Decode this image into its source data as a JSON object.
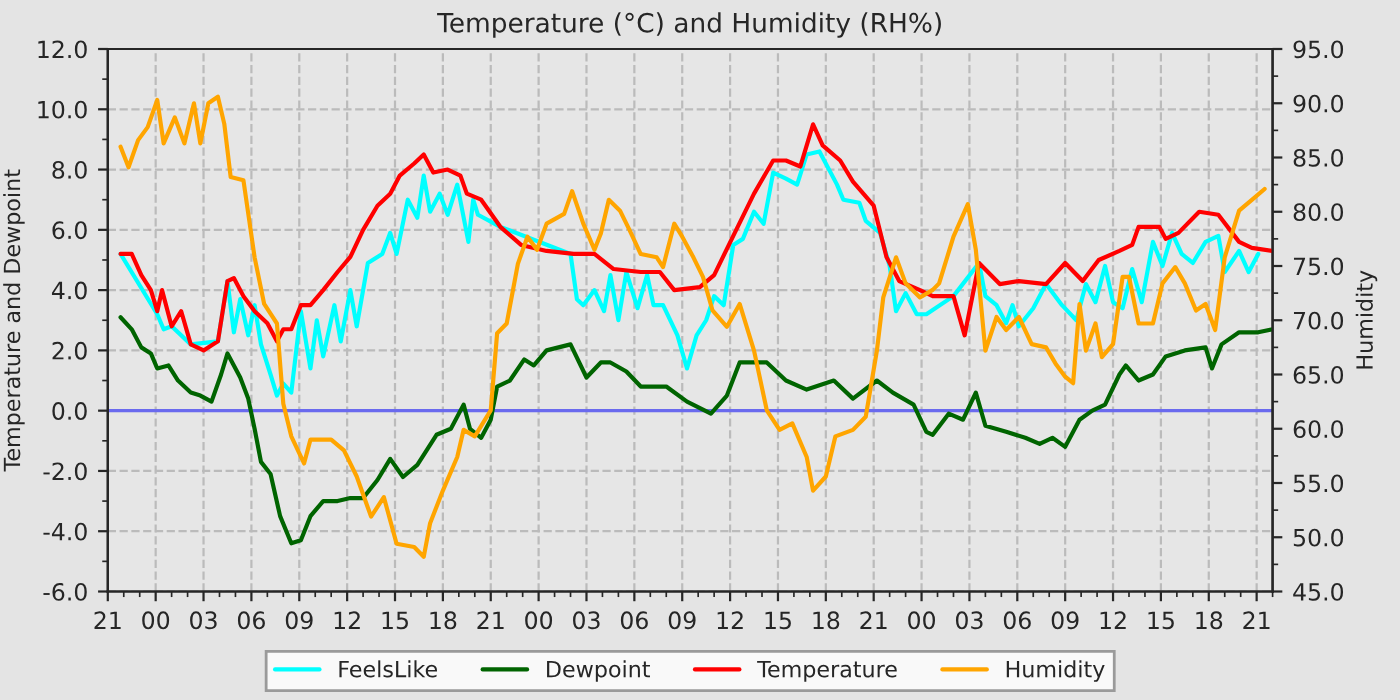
{
  "chart_data": {
    "type": "line",
    "title": "Temperature (°C) and Humidity (RH%)",
    "ylabel": "Temperature and Dewpoint",
    "y2label": "Humidity",
    "xlim": [
      "2000-01-01T21:00",
      "2000-01-04T22:00"
    ],
    "xticks": [
      {
        "value": "2000-01-01T21:00",
        "label": "21"
      },
      {
        "value": "2000-01-02T00:00",
        "label": "00"
      },
      {
        "value": "2000-01-02T03:00",
        "label": "03"
      },
      {
        "value": "2000-01-02T06:00",
        "label": "06"
      },
      {
        "value": "2000-01-02T09:00",
        "label": "09"
      },
      {
        "value": "2000-01-02T12:00",
        "label": "12"
      },
      {
        "value": "2000-01-02T15:00",
        "label": "15"
      },
      {
        "value": "2000-01-02T18:00",
        "label": "18"
      },
      {
        "value": "2000-01-02T21:00",
        "label": "21"
      },
      {
        "value": "2000-01-03T00:00",
        "label": "00"
      },
      {
        "value": "2000-01-03T03:00",
        "label": "03"
      },
      {
        "value": "2000-01-03T06:00",
        "label": "06"
      },
      {
        "value": "2000-01-03T09:00",
        "label": "09"
      },
      {
        "value": "2000-01-03T12:00",
        "label": "12"
      },
      {
        "value": "2000-01-03T15:00",
        "label": "15"
      },
      {
        "value": "2000-01-03T18:00",
        "label": "18"
      },
      {
        "value": "2000-01-03T21:00",
        "label": "21"
      },
      {
        "value": "2000-01-04T00:00",
        "label": "00"
      },
      {
        "value": "2000-01-04T03:00",
        "label": "03"
      },
      {
        "value": "2000-01-04T06:00",
        "label": "06"
      },
      {
        "value": "2000-01-04T09:00",
        "label": "09"
      },
      {
        "value": "2000-01-04T12:00",
        "label": "12"
      },
      {
        "value": "2000-01-04T15:00",
        "label": "15"
      },
      {
        "value": "2000-01-04T18:00",
        "label": "18"
      },
      {
        "value": "2000-01-04T21:00",
        "label": "21"
      }
    ],
    "ylim": [
      -6,
      12
    ],
    "yticks": [
      {
        "value": -6,
        "label": "-6.0"
      },
      {
        "value": -4,
        "label": "-4.0"
      },
      {
        "value": -2,
        "label": "-2.0"
      },
      {
        "value": 0,
        "label": "0.0"
      },
      {
        "value": 2,
        "label": "2.0"
      },
      {
        "value": 4,
        "label": "4.0"
      },
      {
        "value": 6,
        "label": "6.0"
      },
      {
        "value": 8,
        "label": "8.0"
      },
      {
        "value": 10,
        "label": "10.0"
      },
      {
        "value": 12,
        "label": "12.0"
      }
    ],
    "y2lim": [
      45,
      95
    ],
    "y2ticks": [
      {
        "value": 45,
        "label": "45.0"
      },
      {
        "value": 50,
        "label": "50.0"
      },
      {
        "value": 55,
        "label": "55.0"
      },
      {
        "value": 60,
        "label": "60.0"
      },
      {
        "value": 65,
        "label": "65.0"
      },
      {
        "value": 70,
        "label": "70.0"
      },
      {
        "value": 75,
        "label": "75.0"
      },
      {
        "value": 80,
        "label": "80.0"
      },
      {
        "value": 85,
        "label": "85.0"
      },
      {
        "value": 90,
        "label": "90.0"
      },
      {
        "value": 95,
        "label": "95.0"
      }
    ],
    "grid": true,
    "legend": "bottom",
    "line_style": "solid",
    "marker": "none",
    "ref_lines": [
      {
        "axis": "y",
        "value": 0,
        "color": "#6a6aee"
      }
    ],
    "series": [
      {
        "name": "FeelsLike",
        "color": "#00ffff",
        "x": [
          "2000-01-01T21:48",
          "2000-01-02T00:06",
          "2000-01-02T00:30",
          "2000-01-02T01:00",
          "2000-01-02T02:12",
          "2000-01-02T03:54",
          "2000-01-02T04:30",
          "2000-01-02T04:54",
          "2000-01-02T05:18",
          "2000-01-02T05:48",
          "2000-01-02T06:12",
          "2000-01-02T06:36",
          "2000-01-02T07:12",
          "2000-01-02T07:36",
          "2000-01-02T08:00",
          "2000-01-02T08:30",
          "2000-01-02T09:06",
          "2000-01-02T09:42",
          "2000-01-02T10:06",
          "2000-01-02T10:30",
          "2000-01-02T11:12",
          "2000-01-02T11:36",
          "2000-01-02T12:12",
          "2000-01-02T12:36",
          "2000-01-02T13:18",
          "2000-01-02T14:12",
          "2000-01-02T14:42",
          "2000-01-02T15:06",
          "2000-01-02T15:48",
          "2000-01-02T16:24",
          "2000-01-02T16:48",
          "2000-01-02T17:12",
          "2000-01-02T17:48",
          "2000-01-02T18:18",
          "2000-01-02T18:54",
          "2000-01-02T19:36",
          "2000-01-02T19:54",
          "2000-01-02T20:12",
          "2000-01-02T21:36",
          "2000-01-03T02:00",
          "2000-01-03T02:24",
          "2000-01-03T02:48",
          "2000-01-03T03:30",
          "2000-01-03T04:06",
          "2000-01-03T04:30",
          "2000-01-03T05:00",
          "2000-01-03T05:30",
          "2000-01-03T06:12",
          "2000-01-03T06:48",
          "2000-01-03T07:12",
          "2000-01-03T07:48",
          "2000-01-03T08:42",
          "2000-01-03T09:18",
          "2000-01-03T09:54",
          "2000-01-03T10:30",
          "2000-01-03T11:00",
          "2000-01-03T11:36",
          "2000-01-03T12:12",
          "2000-01-03T12:48",
          "2000-01-03T13:30",
          "2000-01-03T14:06",
          "2000-01-03T14:42",
          "2000-01-03T15:30",
          "2000-01-03T16:12",
          "2000-01-03T16:48",
          "2000-01-03T17:36",
          "2000-01-03T18:42",
          "2000-01-03T19:06",
          "2000-01-03T20:06",
          "2000-01-03T20:30",
          "2000-01-03T21:24",
          "2000-01-03T22:00",
          "2000-01-03T22:24",
          "2000-01-03T23:00",
          "2000-01-03T23:42",
          "2000-01-04T00:18",
          "2000-01-04T02:00",
          "2000-01-04T03:36",
          "2000-01-04T04:00",
          "2000-01-04T04:42",
          "2000-01-04T05:18",
          "2000-01-04T05:42",
          "2000-01-04T06:06",
          "2000-01-04T07:00",
          "2000-01-04T07:48",
          "2000-01-04T08:48",
          "2000-01-04T09:42",
          "2000-01-04T10:18",
          "2000-01-04T10:54",
          "2000-01-04T11:30",
          "2000-01-04T12:00",
          "2000-01-04T12:36",
          "2000-01-04T13:12",
          "2000-01-04T13:48",
          "2000-01-04T14:30",
          "2000-01-04T15:06",
          "2000-01-04T15:42",
          "2000-01-04T16:18",
          "2000-01-04T17:00",
          "2000-01-04T17:48",
          "2000-01-04T18:36",
          "2000-01-04T19:00",
          "2000-01-04T19:54",
          "2000-01-04T20:30",
          "2000-01-04T21:06"
        ],
        "values": [
          5.2,
          3.2,
          2.7,
          2.8,
          2.2,
          2.3,
          4.3,
          2.6,
          3.7,
          2.5,
          3.5,
          2.2,
          1.2,
          0.5,
          0.9,
          0.6,
          3.3,
          1.4,
          3.0,
          1.8,
          3.5,
          2.3,
          4.0,
          2.8,
          4.9,
          5.2,
          5.9,
          5.2,
          7.0,
          6.4,
          7.8,
          6.6,
          7.2,
          6.5,
          7.5,
          5.6,
          7.0,
          6.5,
          6.1,
          5.2,
          3.7,
          3.5,
          4.0,
          3.3,
          4.5,
          3.0,
          4.6,
          3.4,
          4.5,
          3.5,
          3.5,
          2.5,
          1.4,
          2.5,
          3.0,
          3.8,
          3.5,
          5.5,
          5.7,
          6.6,
          6.2,
          7.9,
          7.7,
          7.5,
          8.5,
          8.6,
          7.5,
          7.0,
          6.9,
          6.3,
          5.9,
          4.8,
          3.3,
          3.9,
          3.2,
          3.2,
          3.8,
          4.9,
          3.8,
          3.5,
          2.9,
          3.5,
          2.8,
          3.4,
          4.2,
          3.5,
          3.0,
          4.2,
          3.6,
          4.8,
          3.6,
          3.4,
          4.7,
          3.6,
          5.6,
          4.8,
          5.9,
          5.2,
          4.9,
          5.6,
          5.8,
          4.6,
          5.3,
          4.6,
          5.2
        ]
      },
      {
        "name": "Dewpoint",
        "color": "#006400",
        "x": [
          "2000-01-01T21:48",
          "2000-01-01T22:30",
          "2000-01-01T23:06",
          "2000-01-01T23:42",
          "2000-01-02T00:06",
          "2000-01-02T00:48",
          "2000-01-02T01:24",
          "2000-01-02T02:12",
          "2000-01-02T02:48",
          "2000-01-02T03:30",
          "2000-01-02T04:06",
          "2000-01-02T04:30",
          "2000-01-02T05:18",
          "2000-01-02T05:48",
          "2000-01-02T06:12",
          "2000-01-02T06:36",
          "2000-01-02T07:12",
          "2000-01-02T07:48",
          "2000-01-02T08:30",
          "2000-01-02T09:06",
          "2000-01-02T09:42",
          "2000-01-02T10:30",
          "2000-01-02T11:24",
          "2000-01-02T12:12",
          "2000-01-02T13:00",
          "2000-01-02T13:54",
          "2000-01-02T14:42",
          "2000-01-02T15:30",
          "2000-01-02T16:24",
          "2000-01-02T17:36",
          "2000-01-02T18:30",
          "2000-01-02T19:18",
          "2000-01-02T19:42",
          "2000-01-02T20:24",
          "2000-01-02T21:00",
          "2000-01-02T21:24",
          "2000-01-02T22:12",
          "2000-01-02T23:06",
          "2000-01-02T23:42",
          "2000-01-03T00:30",
          "2000-01-03T02:00",
          "2000-01-03T03:00",
          "2000-01-03T03:54",
          "2000-01-03T04:30",
          "2000-01-03T05:30",
          "2000-01-03T06:24",
          "2000-01-03T08:00",
          "2000-01-03T09:18",
          "2000-01-03T10:48",
          "2000-01-03T11:48",
          "2000-01-03T12:36",
          "2000-01-03T14:18",
          "2000-01-03T15:30",
          "2000-01-03T16:48",
          "2000-01-03T18:30",
          "2000-01-03T19:42",
          "2000-01-03T21:12",
          "2000-01-03T22:12",
          "2000-01-03T23:30",
          "2000-01-04T00:18",
          "2000-01-04T00:42",
          "2000-01-04T01:42",
          "2000-01-04T02:36",
          "2000-01-04T03:24",
          "2000-01-04T04:00",
          "2000-01-04T05:18",
          "2000-01-04T06:30",
          "2000-01-04T07:24",
          "2000-01-04T08:12",
          "2000-01-04T09:00",
          "2000-01-04T09:54",
          "2000-01-04T10:42",
          "2000-01-04T11:30",
          "2000-01-04T12:24",
          "2000-01-04T12:48",
          "2000-01-04T13:36",
          "2000-01-04T14:30",
          "2000-01-04T15:18",
          "2000-01-04T16:30",
          "2000-01-04T17:48",
          "2000-01-04T18:12",
          "2000-01-04T18:48",
          "2000-01-04T19:54",
          "2000-01-04T21:06",
          "2000-01-04T22:00"
        ],
        "values": [
          3.1,
          2.7,
          2.1,
          1.9,
          1.4,
          1.5,
          1.0,
          0.6,
          0.5,
          0.3,
          1.2,
          1.9,
          1.1,
          0.4,
          -0.6,
          -1.7,
          -2.1,
          -3.5,
          -4.4,
          -4.3,
          -3.5,
          -3.0,
          -3.0,
          -2.9,
          -2.9,
          -2.3,
          -1.6,
          -2.2,
          -1.8,
          -0.8,
          -0.6,
          0.2,
          -0.6,
          -0.9,
          -0.3,
          0.8,
          1.0,
          1.7,
          1.5,
          2.0,
          2.2,
          1.1,
          1.6,
          1.6,
          1.3,
          0.8,
          0.8,
          0.3,
          -0.1,
          0.5,
          1.6,
          1.6,
          1.0,
          0.7,
          1.0,
          0.4,
          1.0,
          0.6,
          0.2,
          -0.7,
          -0.8,
          -0.1,
          -0.3,
          0.6,
          -0.5,
          -0.7,
          -0.9,
          -1.1,
          -0.9,
          -1.2,
          -0.3,
          0.0,
          0.2,
          1.2,
          1.5,
          1.0,
          1.2,
          1.8,
          2.0,
          2.1,
          1.4,
          2.2,
          2.6,
          2.6,
          2.7
        ]
      },
      {
        "name": "Temperature",
        "color": "#ff0000",
        "x": [
          "2000-01-01T21:48",
          "2000-01-01T22:30",
          "2000-01-01T23:06",
          "2000-01-01T23:42",
          "2000-01-02T00:06",
          "2000-01-02T00:24",
          "2000-01-02T01:00",
          "2000-01-02T01:36",
          "2000-01-02T02:12",
          "2000-01-02T03:00",
          "2000-01-02T03:54",
          "2000-01-02T04:30",
          "2000-01-02T04:54",
          "2000-01-02T05:30",
          "2000-01-02T06:12",
          "2000-01-02T07:00",
          "2000-01-02T07:36",
          "2000-01-02T08:00",
          "2000-01-02T08:30",
          "2000-01-02T09:06",
          "2000-01-02T09:42",
          "2000-01-02T10:30",
          "2000-01-02T11:24",
          "2000-01-02T12:12",
          "2000-01-02T13:00",
          "2000-01-02T13:54",
          "2000-01-02T14:42",
          "2000-01-02T15:18",
          "2000-01-02T16:12",
          "2000-01-02T16:48",
          "2000-01-02T17:24",
          "2000-01-02T18:18",
          "2000-01-02T19:06",
          "2000-01-02T19:30",
          "2000-01-02T20:24",
          "2000-01-02T21:36",
          "2000-01-02T22:54",
          "2000-01-03T00:30",
          "2000-01-03T02:12",
          "2000-01-03T03:30",
          "2000-01-03T04:42",
          "2000-01-03T06:24",
          "2000-01-03T07:36",
          "2000-01-03T08:30",
          "2000-01-03T10:06",
          "2000-01-03T11:00",
          "2000-01-03T12:12",
          "2000-01-03T13:30",
          "2000-01-03T14:42",
          "2000-01-03T15:30",
          "2000-01-03T16:24",
          "2000-01-03T17:12",
          "2000-01-03T17:48",
          "2000-01-03T18:54",
          "2000-01-03T19:42",
          "2000-01-03T21:00",
          "2000-01-03T21:48",
          "2000-01-03T22:36",
          "2000-01-03T23:54",
          "2000-01-04T00:42",
          "2000-01-04T02:00",
          "2000-01-04T02:42",
          "2000-01-04T03:36",
          "2000-01-04T04:54",
          "2000-01-04T06:06",
          "2000-01-04T07:48",
          "2000-01-04T09:00",
          "2000-01-04T10:06",
          "2000-01-04T11:06",
          "2000-01-04T12:24",
          "2000-01-04T13:12",
          "2000-01-04T13:36",
          "2000-01-04T14:54",
          "2000-01-04T15:18",
          "2000-01-04T16:06",
          "2000-01-04T17:24",
          "2000-01-04T18:36",
          "2000-01-04T19:54",
          "2000-01-04T20:42",
          "2000-01-04T22:00"
        ],
        "values": [
          5.2,
          5.2,
          4.5,
          4.0,
          3.3,
          4.0,
          2.8,
          3.3,
          2.2,
          2.0,
          2.3,
          4.3,
          4.4,
          3.8,
          3.3,
          2.9,
          2.3,
          2.7,
          2.7,
          3.5,
          3.5,
          4.0,
          4.6,
          5.1,
          6.0,
          6.8,
          7.2,
          7.8,
          8.2,
          8.5,
          7.9,
          8.0,
          7.8,
          7.2,
          7.0,
          6.1,
          5.5,
          5.3,
          5.2,
          5.2,
          4.7,
          4.6,
          4.6,
          4.0,
          4.1,
          4.5,
          5.8,
          7.2,
          8.3,
          8.3,
          8.1,
          9.5,
          8.8,
          8.3,
          7.6,
          6.8,
          5.1,
          4.3,
          4.0,
          3.8,
          3.8,
          2.5,
          4.9,
          4.2,
          4.3,
          4.2,
          4.9,
          4.3,
          5.0,
          5.3,
          5.5,
          6.1,
          6.1,
          5.7,
          5.9,
          6.6,
          6.5,
          5.6,
          5.4,
          5.3
        ]
      },
      {
        "name": "Humidity",
        "color": "#ffa500",
        "axis": "y2",
        "x": [
          "2000-01-01T21:48",
          "2000-01-01T22:18",
          "2000-01-01T22:54",
          "2000-01-01T23:30",
          "2000-01-02T00:06",
          "2000-01-02T00:30",
          "2000-01-02T01:12",
          "2000-01-02T01:48",
          "2000-01-02T02:24",
          "2000-01-02T02:48",
          "2000-01-02T03:18",
          "2000-01-02T03:54",
          "2000-01-02T04:18",
          "2000-01-02T04:42",
          "2000-01-02T05:30",
          "2000-01-02T06:12",
          "2000-01-02T06:48",
          "2000-01-02T07:36",
          "2000-01-02T08:00",
          "2000-01-02T08:30",
          "2000-01-02T09:18",
          "2000-01-02T09:42",
          "2000-01-02T11:00",
          "2000-01-02T11:48",
          "2000-01-02T12:36",
          "2000-01-02T13:30",
          "2000-01-02T14:18",
          "2000-01-02T15:06",
          "2000-01-02T16:12",
          "2000-01-02T16:48",
          "2000-01-02T17:12",
          "2000-01-02T18:00",
          "2000-01-02T18:54",
          "2000-01-02T19:18",
          "2000-01-02T20:00",
          "2000-01-02T21:00",
          "2000-01-02T21:24",
          "2000-01-02T22:00",
          "2000-01-02T22:42",
          "2000-01-02T23:18",
          "2000-01-02T23:54",
          "2000-01-03T00:30",
          "2000-01-03T01:36",
          "2000-01-03T02:06",
          "2000-01-03T02:48",
          "2000-01-03T03:30",
          "2000-01-03T03:54",
          "2000-01-03T04:24",
          "2000-01-03T05:06",
          "2000-01-03T05:42",
          "2000-01-03T06:24",
          "2000-01-03T07:24",
          "2000-01-03T07:48",
          "2000-01-03T08:30",
          "2000-01-03T09:00",
          "2000-01-03T09:42",
          "2000-01-03T10:18",
          "2000-01-03T10:54",
          "2000-01-03T11:48",
          "2000-01-03T12:36",
          "2000-01-03T13:30",
          "2000-01-03T14:18",
          "2000-01-03T15:06",
          "2000-01-03T15:54",
          "2000-01-03T16:48",
          "2000-01-03T17:12",
          "2000-01-03T18:00",
          "2000-01-03T18:36",
          "2000-01-03T19:42",
          "2000-01-03T20:30",
          "2000-01-03T21:12",
          "2000-01-03T21:36",
          "2000-01-03T22:24",
          "2000-01-03T23:00",
          "2000-01-03T23:54",
          "2000-01-04T00:42",
          "2000-01-04T01:06",
          "2000-01-04T02:00",
          "2000-01-04T02:54",
          "2000-01-04T03:24",
          "2000-01-04T04:00",
          "2000-01-04T04:42",
          "2000-01-04T05:18",
          "2000-01-04T06:06",
          "2000-01-04T06:54",
          "2000-01-04T07:48",
          "2000-01-04T08:24",
          "2000-01-04T09:00",
          "2000-01-04T09:30",
          "2000-01-04T09:54",
          "2000-01-04T10:18",
          "2000-01-04T10:54",
          "2000-01-04T11:18",
          "2000-01-04T12:00",
          "2000-01-04T12:36",
          "2000-01-04T13:00",
          "2000-01-04T13:36",
          "2000-01-04T14:30",
          "2000-01-04T15:06",
          "2000-01-04T15:54",
          "2000-01-04T16:30",
          "2000-01-04T17:12",
          "2000-01-04T17:48",
          "2000-01-04T18:24",
          "2000-01-04T19:00",
          "2000-01-04T19:54",
          "2000-01-04T20:42",
          "2000-01-04T21:30"
        ],
        "values": [
          86.0,
          84.1,
          86.6,
          87.8,
          90.3,
          86.3,
          88.7,
          86.3,
          90.0,
          86.3,
          90.0,
          90.6,
          88.1,
          83.2,
          82.9,
          75.8,
          71.5,
          69.7,
          62.3,
          59.3,
          56.8,
          59.0,
          59.0,
          58.0,
          55.6,
          51.9,
          53.7,
          49.4,
          49.1,
          48.2,
          51.3,
          54.3,
          57.4,
          59.9,
          59.3,
          61.7,
          68.8,
          69.7,
          75.2,
          77.7,
          76.5,
          78.9,
          79.8,
          81.9,
          78.9,
          76.5,
          78.0,
          81.1,
          80.1,
          78.3,
          76.1,
          75.8,
          74.9,
          78.9,
          77.7,
          75.8,
          74.0,
          70.9,
          69.4,
          71.5,
          67.2,
          61.7,
          59.9,
          60.5,
          57.4,
          54.3,
          55.6,
          59.3,
          59.9,
          61.1,
          67.2,
          72.1,
          75.8,
          73.4,
          72.1,
          72.8,
          73.4,
          77.7,
          80.7,
          76.5,
          67.2,
          70.3,
          69.1,
          70.3,
          67.8,
          67.5,
          66.0,
          64.8,
          64.2,
          71.5,
          67.2,
          69.7,
          66.6,
          67.8,
          74.0,
          74.0,
          69.7,
          69.7,
          73.4,
          74.9,
          73.4,
          70.9,
          71.5,
          69.1,
          75.8,
          80.1,
          81.1,
          82.1
        ]
      }
    ]
  }
}
